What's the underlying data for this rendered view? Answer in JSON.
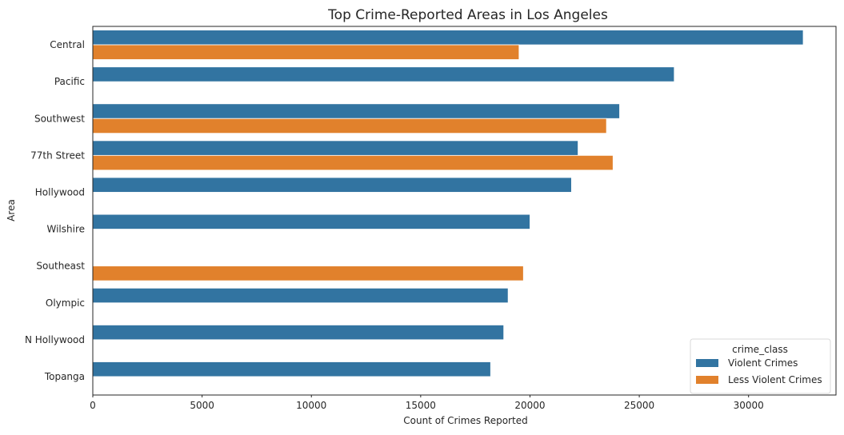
{
  "chart_data": {
    "type": "bar",
    "orientation": "horizontal",
    "title": "Top Crime-Reported Areas in Los Angeles",
    "xlabel": "Count of Crimes Reported",
    "ylabel": "Area",
    "categories": [
      "Central",
      "Pacific",
      "Southwest",
      "77th Street",
      "Hollywood",
      "Wilshire",
      "Southeast",
      "Olympic",
      "N Hollywood",
      "Topanga"
    ],
    "xlim": [
      0,
      34000
    ],
    "xticks": [
      0,
      5000,
      10000,
      15000,
      20000,
      25000,
      30000
    ],
    "grid": false,
    "legend": {
      "title": "crime_class",
      "placement": "lower-right"
    },
    "series": [
      {
        "name": "Violent Crimes",
        "color": "#3274a1",
        "values": [
          32500,
          26600,
          24100,
          22200,
          21900,
          20000,
          null,
          19000,
          18800,
          18200
        ]
      },
      {
        "name": "Less Violent Crimes",
        "color": "#e1812c",
        "values": [
          19500,
          null,
          23500,
          23800,
          null,
          null,
          19700,
          null,
          null,
          null
        ]
      }
    ]
  }
}
